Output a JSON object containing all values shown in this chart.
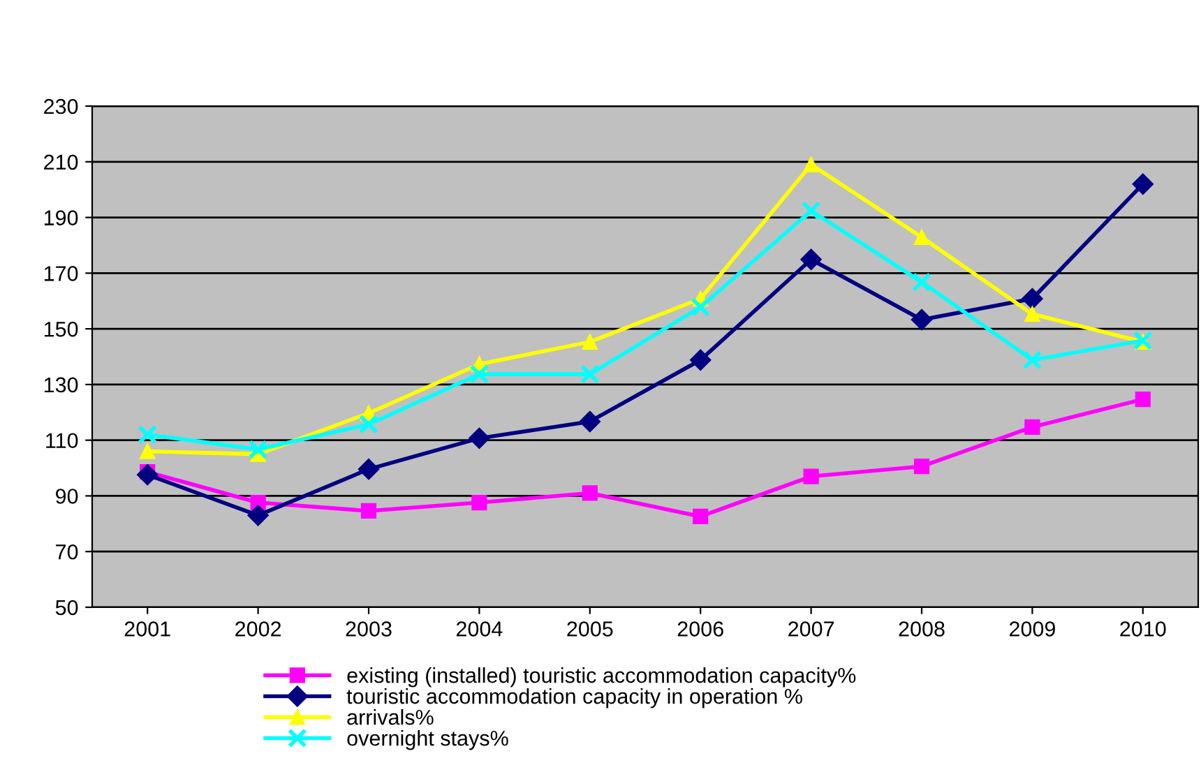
{
  "chart_data": {
    "type": "line",
    "categories": [
      "2001",
      "2002",
      "2003",
      "2004",
      "2005",
      "2006",
      "2007",
      "2008",
      "2009",
      "2010"
    ],
    "series": [
      {
        "name": "existing (installed) touristic accommodation capacity%",
        "color": "#ff00ff",
        "marker": "square",
        "values": [
          98.6,
          87.6,
          84.6,
          87.6,
          91,
          82.6,
          97,
          100.6,
          114.7,
          124.7
        ]
      },
      {
        "name": "touristic accommodation capacity in operation %",
        "color": "#000080",
        "marker": "diamond",
        "values": [
          97.6,
          83,
          99.6,
          110.7,
          116.7,
          138.8,
          174.9,
          153.3,
          160.8,
          202
        ]
      },
      {
        "name": "arrivals%",
        "color": "#ffff00",
        "marker": "triangle",
        "values": [
          106,
          105,
          119.7,
          137.3,
          145.3,
          160.8,
          209,
          182.9,
          155.3,
          145.3
        ]
      },
      {
        "name": "overnight stays%",
        "color": "#00ffff",
        "marker": "cross",
        "values": [
          112,
          106.7,
          115.7,
          133.7,
          133.7,
          157.8,
          192.4,
          166.8,
          138.8,
          145.8
        ]
      }
    ],
    "ylim": [
      50,
      230
    ],
    "yticks": [
      50,
      70,
      90,
      110,
      130,
      150,
      170,
      190,
      210,
      230
    ],
    "grid": "y",
    "legend": "bottom"
  }
}
